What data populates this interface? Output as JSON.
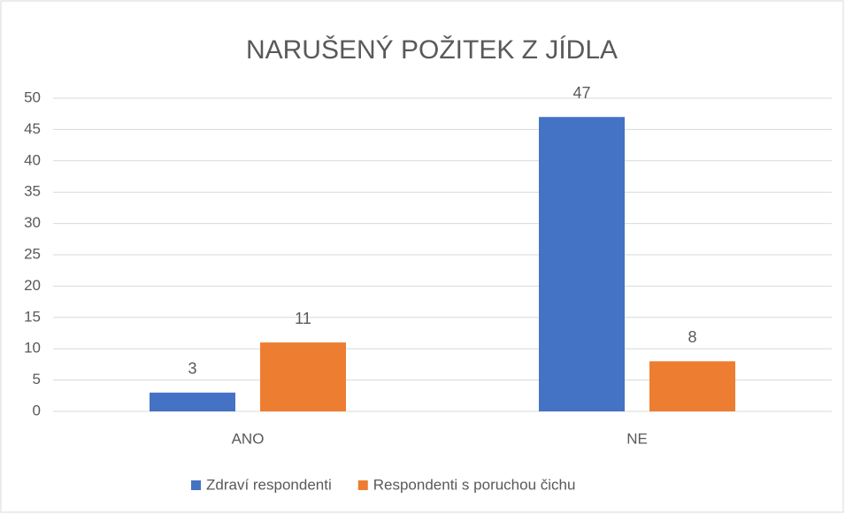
{
  "chart_data": {
    "type": "bar",
    "title": "NARUŠENÝ POŽITEK Z JÍDLA",
    "categories": [
      "ANO",
      "NE"
    ],
    "series": [
      {
        "name": "Zdraví respondenti",
        "color": "#4472c4",
        "values": [
          3,
          47
        ]
      },
      {
        "name": "Respondenti s poruchou čichu",
        "color": "#ed7d31",
        "values": [
          11,
          8
        ]
      }
    ],
    "ylim": [
      0,
      50
    ],
    "yticks": [
      0,
      5,
      10,
      15,
      20,
      25,
      30,
      35,
      40,
      45,
      50
    ],
    "grid": true,
    "legend": "bottom"
  }
}
